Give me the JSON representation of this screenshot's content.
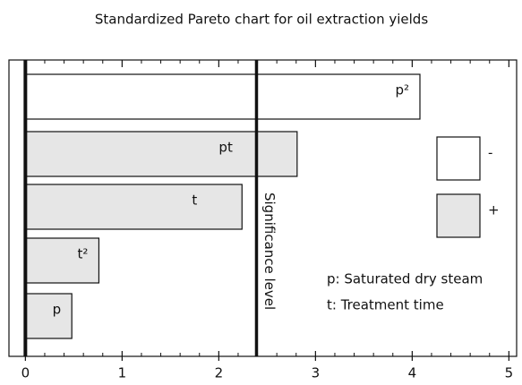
{
  "chart_data": {
    "type": "bar",
    "orientation": "horizontal",
    "title": "Standardized Pareto chart for oil extraction yields",
    "categories": [
      "p²",
      "pt",
      "t",
      "t²",
      "p"
    ],
    "series": [
      {
        "name": "-",
        "color": "#ffffff",
        "values": [
          4.08,
          null,
          null,
          null,
          null
        ]
      },
      {
        "name": "+",
        "color": "#e6e6e6",
        "values": [
          null,
          2.81,
          2.24,
          0.76,
          0.48
        ]
      }
    ],
    "xlim": [
      -0.17,
      5.08
    ],
    "xticks": [
      0,
      1,
      2,
      3,
      4,
      5
    ],
    "minor_xticks": [
      0.2,
      0.4,
      0.6,
      0.8,
      1.2,
      1.4,
      1.6,
      1.8,
      2.2,
      2.4,
      2.6,
      2.8,
      3.2,
      3.4,
      3.6,
      3.8,
      4.2,
      4.4,
      4.6,
      4.8
    ],
    "significance_level": {
      "value": 2.39,
      "label": "Significance level"
    },
    "annotations": [
      "p: Saturated dry steam",
      "t: Treatment time"
    ],
    "legend": "right"
  }
}
